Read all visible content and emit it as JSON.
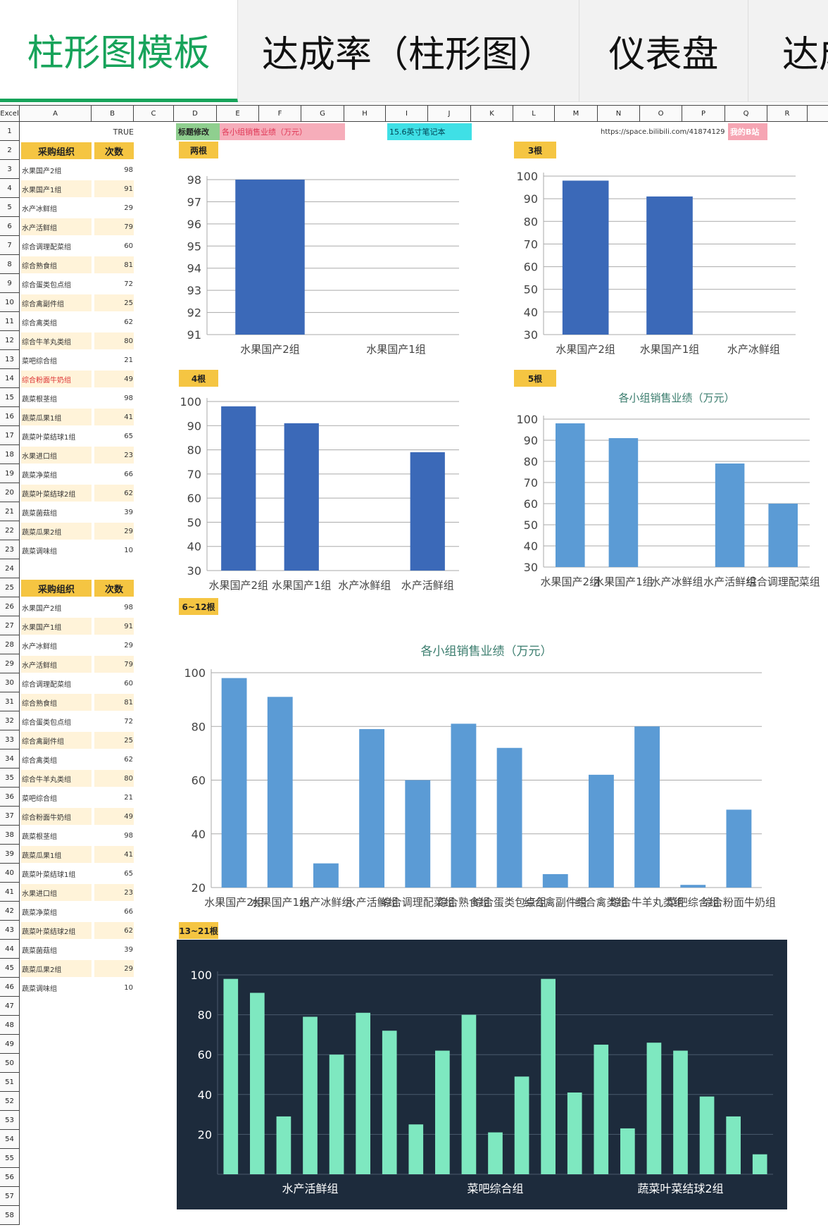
{
  "tabs": [
    "柱形图模板",
    "达成率（柱形图）",
    "仪表盘",
    "达成"
  ],
  "columns": [
    "Excel",
    "A",
    "B",
    "C",
    "D",
    "E",
    "F",
    "G",
    "H",
    "I",
    "J",
    "K",
    "L",
    "M",
    "N",
    "O",
    "P",
    "Q",
    "R"
  ],
  "cells": {
    "b1": "TRUE",
    "d1": "标题修改",
    "e1": "各小组销售业绩（万元）",
    "i1": "15.6英寸笔记本",
    "url": "https://space.bilibili.com/41874129",
    "q1": "我的B站"
  },
  "table1": {
    "headers": [
      "采购组织",
      "次数"
    ],
    "rows": [
      [
        "水果国产2组",
        "98"
      ],
      [
        "水果国产1组",
        "91"
      ],
      [
        "水产冰鲜组",
        "29"
      ],
      [
        "水产活鲜组",
        "79"
      ],
      [
        "综合调理配菜组",
        "60"
      ],
      [
        "综合熟食组",
        "81"
      ],
      [
        "综合蛋类包点组",
        "72"
      ],
      [
        "综合禽副件组",
        "25"
      ],
      [
        "综合禽类组",
        "62"
      ],
      [
        "综合牛羊丸类组",
        "80"
      ],
      [
        "菜吧综合组",
        "21"
      ],
      [
        "综合粉面牛奶组",
        "49"
      ],
      [
        "蔬菜根茎组",
        "98"
      ],
      [
        "蔬菜瓜果1组",
        "41"
      ],
      [
        "蔬菜叶菜结球1组",
        "65"
      ],
      [
        "水果进口组",
        "23"
      ],
      [
        "蔬菜净菜组",
        "66"
      ],
      [
        "蔬菜叶菜结球2组",
        "62"
      ],
      [
        "蔬菜菌菇组",
        "39"
      ],
      [
        "蔬菜瓜果2组",
        "29"
      ],
      [
        "蔬菜调味组",
        "10"
      ]
    ]
  },
  "table2": {
    "headers": [
      "采购组织",
      "次数"
    ],
    "rows": [
      [
        "水果国产2组",
        "98"
      ],
      [
        "水果国产1组",
        "91"
      ],
      [
        "水产冰鲜组",
        "29"
      ],
      [
        "水产活鲜组",
        "79"
      ],
      [
        "综合调理配菜组",
        "60"
      ],
      [
        "综合熟食组",
        "81"
      ],
      [
        "综合蛋类包点组",
        "72"
      ],
      [
        "综合禽副件组",
        "25"
      ],
      [
        "综合禽类组",
        "62"
      ],
      [
        "综合牛羊丸类组",
        "80"
      ],
      [
        "菜吧综合组",
        "21"
      ],
      [
        "综合粉面牛奶组",
        "49"
      ],
      [
        "蔬菜根茎组",
        "98"
      ],
      [
        "蔬菜瓜果1组",
        "41"
      ],
      [
        "蔬菜叶菜结球1组",
        "65"
      ],
      [
        "水果进口组",
        "23"
      ],
      [
        "蔬菜净菜组",
        "66"
      ],
      [
        "蔬菜叶菜结球2组",
        "62"
      ],
      [
        "蔬菜菌菇组",
        "39"
      ],
      [
        "蔬菜瓜果2组",
        "29"
      ],
      [
        "蔬菜调味组",
        "10"
      ]
    ]
  },
  "row_numbers": [
    "1",
    "2",
    "3",
    "4",
    "5",
    "6",
    "7",
    "8",
    "9",
    "10",
    "11",
    "12",
    "13",
    "14",
    "15",
    "16",
    "17",
    "18",
    "19",
    "20",
    "21",
    "22",
    "23",
    "24",
    "25",
    "26",
    "27",
    "28",
    "29",
    "30",
    "31",
    "32",
    "33",
    "34",
    "35",
    "36",
    "37",
    "38",
    "39",
    "40",
    "41",
    "42",
    "43",
    "44",
    "45",
    "46",
    "47",
    "48",
    "49",
    "50",
    "51",
    "52",
    "53",
    "54",
    "55",
    "56",
    "57",
    "58"
  ],
  "section_tags": [
    "两根",
    "3根",
    "4根",
    "5根",
    "6~12根",
    "13~21根"
  ],
  "colors": {
    "accent": "#17a35a",
    "dark_bar": "#3b69b8",
    "light_bar": "#5b9bd5",
    "teal_bar": "#7ee8c0",
    "dark_bg": "#1d2b3c",
    "tag": "#f5c542"
  },
  "chart_data": [
    {
      "type": "bar",
      "tag": "两根",
      "title": "",
      "categories": [
        "水果国产2组",
        "水果国产1组"
      ],
      "values": [
        98,
        91
      ],
      "ylim": [
        91,
        98
      ],
      "yticks": [
        91,
        92,
        93,
        94,
        95,
        96,
        97,
        98
      ],
      "grid": true
    },
    {
      "type": "bar",
      "tag": "3根",
      "title": "",
      "categories": [
        "水果国产2组",
        "水果国产1组",
        "水产冰鲜组"
      ],
      "values": [
        98,
        91,
        29
      ],
      "ylim": [
        30,
        100
      ],
      "yticks": [
        30,
        40,
        50,
        60,
        70,
        80,
        90,
        100
      ],
      "grid": true
    },
    {
      "type": "bar",
      "tag": "4根",
      "title": "",
      "categories": [
        "水果国产2组",
        "水果国产1组",
        "水产冰鲜组",
        "水产活鲜组"
      ],
      "values": [
        98,
        91,
        29,
        79
      ],
      "ylim": [
        30,
        100
      ],
      "yticks": [
        30,
        40,
        50,
        60,
        70,
        80,
        90,
        100
      ],
      "grid": true
    },
    {
      "type": "bar",
      "tag": "5根",
      "title": "各小组销售业绩（万元）",
      "categories": [
        "水果国产2组",
        "水果国产1组",
        "水产冰鲜组",
        "水产活鲜组",
        "综合调理配菜组"
      ],
      "values": [
        98,
        91,
        29,
        79,
        60
      ],
      "ylim": [
        30,
        100
      ],
      "yticks": [
        30,
        40,
        50,
        60,
        70,
        80,
        90,
        100
      ],
      "grid": true
    },
    {
      "type": "bar",
      "tag": "6~12根",
      "title": "各小组销售业绩（万元）",
      "categories": [
        "水果国产2组",
        "水果国产1组",
        "水产冰鲜组",
        "水产活鲜组",
        "综合调理配菜组",
        "综合熟食组",
        "综合蛋类包点组",
        "综合禽副件组",
        "综合禽类组",
        "综合牛羊丸类组",
        "菜吧综合组",
        "综合粉面牛奶组"
      ],
      "values": [
        98,
        91,
        29,
        79,
        60,
        81,
        72,
        25,
        62,
        80,
        21,
        49
      ],
      "ylim": [
        20,
        100
      ],
      "yticks": [
        20,
        40,
        60,
        80,
        100
      ],
      "grid": true
    },
    {
      "type": "bar",
      "tag": "13~21根",
      "title": "",
      "categories": [
        "水果国产2组",
        "水果国产1组",
        "水产冰鲜组",
        "水产活鲜组",
        "综合调理配菜组",
        "综合熟食组",
        "综合蛋类包点组",
        "综合禽副件组",
        "综合禽类组",
        "综合牛羊丸类组",
        "菜吧综合组",
        "综合粉面牛奶组",
        "蔬菜根茎组",
        "蔬菜瓜果1组",
        "蔬菜叶菜结球1组",
        "水果进口组",
        "蔬菜净菜组",
        "蔬菜叶菜结球2组",
        "蔬菜菌菇组",
        "蔬菜瓜果2组",
        "蔬菜调味组"
      ],
      "shown_xlabels": [
        "水产活鲜组",
        "菜吧综合组",
        "蔬菜叶菜结球2组"
      ],
      "values": [
        98,
        91,
        29,
        79,
        60,
        81,
        72,
        25,
        62,
        80,
        21,
        49,
        98,
        41,
        65,
        23,
        66,
        62,
        39,
        29,
        10
      ],
      "ylim": [
        0,
        100
      ],
      "yticks": [
        20,
        40,
        60,
        80,
        100
      ],
      "grid": true
    }
  ]
}
